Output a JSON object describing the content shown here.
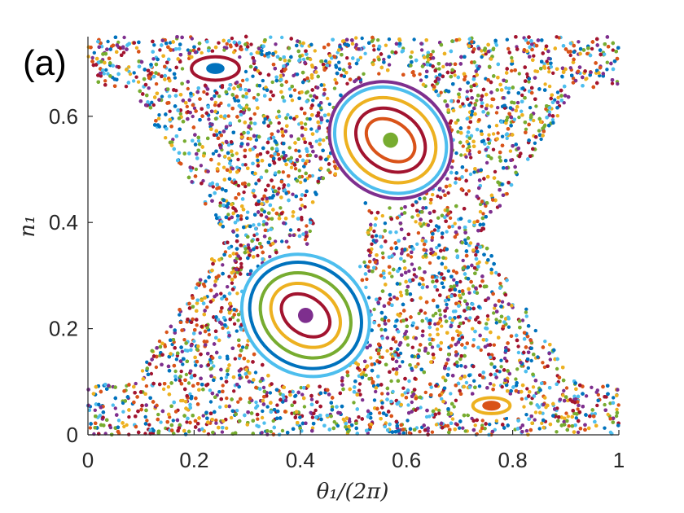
{
  "panel_label": "(a)",
  "chart_data": {
    "type": "scatter",
    "title": "",
    "xlabel": "θ₁/(2π)",
    "ylabel": "n₁",
    "xlim": [
      0,
      1
    ],
    "ylim": [
      0,
      0.75
    ],
    "xticks": [
      "0",
      "0.2",
      "0.4",
      "0.6",
      "0.8",
      "1"
    ],
    "yticks": [
      "0",
      "0.2",
      "0.4",
      "0.6"
    ],
    "grid": false,
    "legend": "none",
    "palette": [
      "#0072BD",
      "#D95319",
      "#EDB120",
      "#7E2F8E",
      "#77AC30",
      "#4DBEEE",
      "#A2142F"
    ],
    "chaotic_sea": {
      "description_of_region": "points fill region outside island boundaries",
      "approx_points": 11000
    },
    "islands": [
      {
        "center": [
          0.24,
          0.69
        ],
        "rx": [
          0.015,
          0.045,
          0.055
        ],
        "ry": [
          0.008,
          0.022,
          0.03
        ],
        "colors": [
          "#0072BD",
          "#A2142F",
          "#ffffff"
        ]
      },
      {
        "center": [
          0.76,
          0.055
        ],
        "rx": [
          0.015,
          0.035,
          0.055
        ],
        "ry": [
          0.007,
          0.015,
          0.025
        ],
        "colors": [
          "#D95319",
          "#EDB120",
          "#ffffff"
        ]
      },
      {
        "center": [
          0.57,
          0.555
        ],
        "rx": [
          0.012,
          0.035,
          0.055,
          0.075,
          0.095,
          0.105
        ],
        "ry": [
          0.012,
          0.05,
          0.07,
          0.09,
          0.11,
          0.12
        ],
        "colors": [
          "#77AC30",
          "#D95319",
          "#A2142F",
          "#EDB120",
          "#4DBEEE",
          "#7E2F8E"
        ]
      },
      {
        "center": [
          0.41,
          0.225
        ],
        "rx": [
          0.012,
          0.035,
          0.055,
          0.075,
          0.095,
          0.11
        ],
        "ry": [
          0.012,
          0.05,
          0.07,
          0.09,
          0.11,
          0.125
        ],
        "colors": [
          "#7E2F8E",
          "#A2142F",
          "#EDB120",
          "#77AC30",
          "#0072BD",
          "#4DBEEE"
        ]
      }
    ]
  }
}
